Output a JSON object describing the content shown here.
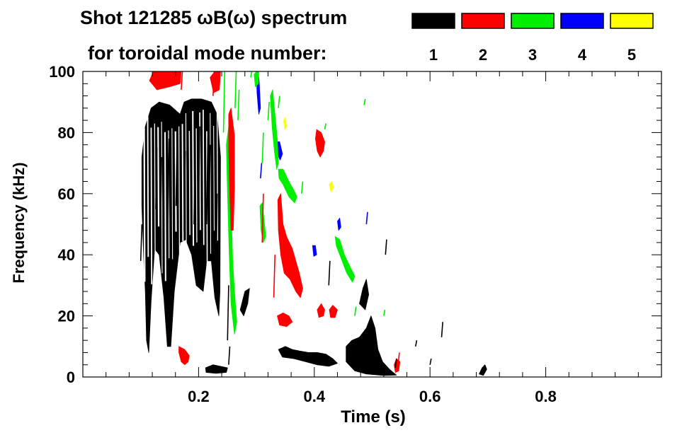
{
  "chart_data": {
    "type": "heatmap",
    "title_line1": "Shot 121285 ωB(ω) spectrum",
    "title_line2": "for toroidal mode number:",
    "xlabel": "Time (s)",
    "ylabel": "Frequency (kHz)",
    "xlim": [
      0.0,
      1.0
    ],
    "ylim": [
      0,
      100
    ],
    "x_ticks": [
      {
        "value": 0.2,
        "label": "0.2"
      },
      {
        "value": 0.4,
        "label": "0.4"
      },
      {
        "value": 0.6,
        "label": "0.6"
      },
      {
        "value": 0.8,
        "label": "0.8"
      }
    ],
    "y_ticks": [
      {
        "value": 0,
        "label": "0"
      },
      {
        "value": 20,
        "label": "20"
      },
      {
        "value": 40,
        "label": "40"
      },
      {
        "value": 60,
        "label": "60"
      },
      {
        "value": 80,
        "label": "80"
      },
      {
        "value": 100,
        "label": "100"
      }
    ],
    "legend": [
      {
        "n": "1",
        "color": "#000000"
      },
      {
        "n": "2",
        "color": "#ff0000"
      },
      {
        "n": "3",
        "color": "#00ee00"
      },
      {
        "n": "4",
        "color": "#0000ff"
      },
      {
        "n": "5",
        "color": "#ffff00"
      }
    ],
    "regions": [
      {
        "mode": 1,
        "points": [
          [
            0.102,
            72
          ],
          [
            0.108,
            82
          ],
          [
            0.118,
            88
          ],
          [
            0.132,
            90
          ],
          [
            0.15,
            89
          ],
          [
            0.168,
            86
          ],
          [
            0.175,
            90
          ],
          [
            0.188,
            91
          ],
          [
            0.205,
            91
          ],
          [
            0.222,
            90
          ],
          [
            0.232,
            86
          ],
          [
            0.238,
            72
          ],
          [
            0.237,
            28
          ],
          [
            0.235,
            20
          ],
          [
            0.228,
            26
          ],
          [
            0.222,
            38
          ],
          [
            0.214,
            38
          ],
          [
            0.208,
            28
          ],
          [
            0.196,
            30
          ],
          [
            0.188,
            40
          ],
          [
            0.178,
            45
          ],
          [
            0.168,
            44
          ],
          [
            0.158,
            28
          ],
          [
            0.152,
            10
          ],
          [
            0.146,
            10
          ],
          [
            0.14,
            26
          ],
          [
            0.132,
            40
          ],
          [
            0.124,
            42
          ],
          [
            0.118,
            25
          ],
          [
            0.114,
            8
          ],
          [
            0.11,
            12
          ],
          [
            0.108,
            28
          ],
          [
            0.105,
            40
          ],
          [
            0.102,
            56
          ]
        ]
      },
      {
        "mode": 1,
        "points": [
          [
            0.212,
            3
          ],
          [
            0.225,
            4
          ],
          [
            0.238,
            3.5
          ],
          [
            0.25,
            3
          ],
          [
            0.248,
            1.5
          ],
          [
            0.23,
            1.2
          ],
          [
            0.213,
            1.5
          ]
        ]
      },
      {
        "mode": 1,
        "points": [
          [
            0.272,
            22
          ],
          [
            0.28,
            28
          ],
          [
            0.288,
            29
          ],
          [
            0.285,
            24
          ],
          [
            0.278,
            20
          ]
        ]
      },
      {
        "mode": 1,
        "points": [
          [
            0.338,
            9
          ],
          [
            0.35,
            10
          ],
          [
            0.362,
            9
          ],
          [
            0.375,
            8.5
          ],
          [
            0.39,
            8
          ],
          [
            0.405,
            8
          ],
          [
            0.42,
            7.5
          ],
          [
            0.432,
            6
          ],
          [
            0.44,
            4.5
          ],
          [
            0.425,
            3.5
          ],
          [
            0.405,
            4
          ],
          [
            0.385,
            5
          ],
          [
            0.365,
            6
          ],
          [
            0.345,
            6.5
          ]
        ]
      },
      {
        "mode": 1,
        "points": [
          [
            0.455,
            10
          ],
          [
            0.465,
            12
          ],
          [
            0.478,
            13
          ],
          [
            0.49,
            16
          ],
          [
            0.498,
            20
          ],
          [
            0.505,
            16
          ],
          [
            0.51,
            9
          ],
          [
            0.518,
            5
          ],
          [
            0.53,
            2.5
          ],
          [
            0.542,
            0.6
          ],
          [
            0.52,
            0.5
          ],
          [
            0.49,
            1
          ],
          [
            0.47,
            2
          ],
          [
            0.455,
            5
          ]
        ]
      },
      {
        "mode": 1,
        "points": [
          [
            0.478,
            24
          ],
          [
            0.484,
            29
          ],
          [
            0.49,
            32
          ],
          [
            0.494,
            27
          ],
          [
            0.488,
            22
          ]
        ]
      },
      {
        "mode": 1,
        "points": [
          [
            0.685,
            1
          ],
          [
            0.69,
            3
          ],
          [
            0.695,
            4
          ],
          [
            0.698,
            2.5
          ],
          [
            0.692,
            0.5
          ]
        ]
      },
      {
        "mode": 2,
        "points": [
          [
            0.115,
            97
          ],
          [
            0.122,
            100
          ],
          [
            0.17,
            100
          ],
          [
            0.168,
            96
          ],
          [
            0.15,
            95
          ],
          [
            0.128,
            94
          ]
        ]
      },
      {
        "mode": 2,
        "points": [
          [
            0.22,
            98
          ],
          [
            0.228,
            100
          ],
          [
            0.238,
            100
          ],
          [
            0.236,
            94
          ],
          [
            0.226,
            93
          ]
        ]
      },
      {
        "mode": 2,
        "points": [
          [
            0.252,
            86
          ],
          [
            0.256,
            88
          ],
          [
            0.262,
            79
          ],
          [
            0.262,
            62
          ],
          [
            0.26,
            48
          ],
          [
            0.256,
            48
          ],
          [
            0.254,
            60
          ],
          [
            0.252,
            75
          ]
        ]
      },
      {
        "mode": 2,
        "points": [
          [
            0.166,
            10
          ],
          [
            0.176,
            9
          ],
          [
            0.184,
            7
          ],
          [
            0.182,
            5
          ],
          [
            0.176,
            4
          ],
          [
            0.17,
            5
          ],
          [
            0.166,
            8
          ]
        ]
      },
      {
        "mode": 2,
        "points": [
          [
            0.337,
            58
          ],
          [
            0.342,
            60
          ],
          [
            0.346,
            50
          ],
          [
            0.352,
            46
          ],
          [
            0.362,
            42
          ],
          [
            0.368,
            38
          ],
          [
            0.374,
            34
          ],
          [
            0.38,
            29
          ],
          [
            0.376,
            26
          ],
          [
            0.368,
            28
          ],
          [
            0.358,
            32
          ],
          [
            0.348,
            34
          ],
          [
            0.342,
            40
          ],
          [
            0.338,
            48
          ]
        ]
      },
      {
        "mode": 2,
        "points": [
          [
            0.336,
            20
          ],
          [
            0.346,
            21
          ],
          [
            0.356,
            20
          ],
          [
            0.362,
            18
          ],
          [
            0.352,
            16.5
          ],
          [
            0.34,
            17
          ]
        ]
      },
      {
        "mode": 2,
        "points": [
          [
            0.404,
            81
          ],
          [
            0.412,
            80
          ],
          [
            0.418,
            77
          ],
          [
            0.416,
            74
          ],
          [
            0.41,
            72
          ],
          [
            0.405,
            74
          ],
          [
            0.402,
            78
          ]
        ]
      },
      {
        "mode": 2,
        "points": [
          [
            0.405,
            22
          ],
          [
            0.412,
            24
          ],
          [
            0.418,
            22
          ],
          [
            0.416,
            20
          ],
          [
            0.408,
            19.5
          ]
        ]
      },
      {
        "mode": 2,
        "points": [
          [
            0.426,
            22
          ],
          [
            0.432,
            23.5
          ],
          [
            0.44,
            22
          ],
          [
            0.436,
            19.5
          ],
          [
            0.428,
            19.5
          ]
        ]
      },
      {
        "mode": 2,
        "points": [
          [
            0.538,
            4
          ],
          [
            0.542,
            6
          ],
          [
            0.548,
            5
          ],
          [
            0.546,
            2
          ],
          [
            0.54,
            1.5
          ]
        ]
      },
      {
        "mode": 3,
        "points": [
          [
            0.248,
            76
          ],
          [
            0.252,
            82
          ],
          [
            0.255,
            70
          ],
          [
            0.257,
            50
          ],
          [
            0.259,
            38
          ],
          [
            0.262,
            28
          ],
          [
            0.266,
            18
          ],
          [
            0.262,
            14
          ],
          [
            0.256,
            24
          ],
          [
            0.253,
            40
          ],
          [
            0.25,
            60
          ]
        ]
      },
      {
        "mode": 3,
        "points": [
          [
            0.306,
            56
          ],
          [
            0.31,
            57
          ],
          [
            0.314,
            50
          ],
          [
            0.316,
            46
          ],
          [
            0.312,
            44
          ],
          [
            0.308,
            48
          ]
        ]
      },
      {
        "mode": 3,
        "points": [
          [
            0.324,
            92
          ],
          [
            0.328,
            94
          ],
          [
            0.332,
            86
          ],
          [
            0.336,
            78
          ],
          [
            0.338,
            70
          ],
          [
            0.335,
            68
          ],
          [
            0.331,
            74
          ],
          [
            0.327,
            82
          ]
        ]
      },
      {
        "mode": 3,
        "points": [
          [
            0.338,
            68
          ],
          [
            0.346,
            68
          ],
          [
            0.356,
            64
          ],
          [
            0.365,
            61
          ],
          [
            0.37,
            59
          ],
          [
            0.366,
            57
          ],
          [
            0.356,
            59
          ],
          [
            0.346,
            63
          ],
          [
            0.339,
            65
          ]
        ]
      },
      {
        "mode": 3,
        "points": [
          [
            0.436,
            46
          ],
          [
            0.444,
            45
          ],
          [
            0.452,
            40
          ],
          [
            0.462,
            36
          ],
          [
            0.47,
            33
          ],
          [
            0.466,
            31
          ],
          [
            0.456,
            34
          ],
          [
            0.446,
            39
          ],
          [
            0.438,
            43
          ]
        ]
      },
      {
        "mode": 3,
        "points": [
          [
            0.296,
            99
          ],
          [
            0.3,
            100
          ],
          [
            0.304,
            100
          ],
          [
            0.303,
            96
          ],
          [
            0.298,
            95
          ]
        ]
      },
      {
        "mode": 4,
        "points": [
          [
            0.3,
            100
          ],
          [
            0.303,
            100
          ],
          [
            0.305,
            96
          ],
          [
            0.307,
            88
          ],
          [
            0.304,
            86
          ],
          [
            0.301,
            93
          ]
        ]
      },
      {
        "mode": 4,
        "points": [
          [
            0.335,
            77
          ],
          [
            0.34,
            77
          ],
          [
            0.345,
            73
          ],
          [
            0.341,
            71
          ],
          [
            0.336,
            73
          ]
        ]
      },
      {
        "mode": 4,
        "points": [
          [
            0.44,
            51
          ],
          [
            0.444,
            52
          ],
          [
            0.446,
            49
          ],
          [
            0.442,
            48
          ]
        ]
      },
      {
        "mode": 4,
        "points": [
          [
            0.397,
            43
          ],
          [
            0.402,
            43
          ],
          [
            0.404,
            40
          ],
          [
            0.399,
            39.5
          ]
        ]
      },
      {
        "mode": 5,
        "points": [
          [
            0.347,
            84
          ],
          [
            0.35,
            85
          ],
          [
            0.352,
            82
          ],
          [
            0.349,
            81
          ]
        ]
      },
      {
        "mode": 5,
        "points": [
          [
            0.426,
            63
          ],
          [
            0.43,
            64
          ],
          [
            0.433,
            62
          ],
          [
            0.429,
            60.5
          ]
        ]
      }
    ],
    "streaks": [
      {
        "mode": 1,
        "segments": [
          [
            0.1,
            38,
            50
          ],
          [
            0.126,
            55,
            75
          ],
          [
            0.134,
            45,
            72
          ],
          [
            0.147,
            50,
            78
          ],
          [
            0.161,
            56,
            80
          ],
          [
            0.175,
            48,
            74
          ],
          [
            0.192,
            50,
            72
          ],
          [
            0.2,
            55,
            82
          ],
          [
            0.214,
            50,
            78
          ],
          [
            0.218,
            50,
            76
          ],
          [
            0.23,
            30,
            60
          ],
          [
            0.25,
            12,
            30
          ],
          [
            0.252,
            4,
            10
          ],
          [
            0.425,
            30,
            38
          ],
          [
            0.523,
            40,
            45
          ],
          [
            0.54,
            3,
            6
          ],
          [
            0.575,
            10,
            12
          ],
          [
            0.6,
            4,
            6
          ],
          [
            0.62,
            13,
            18
          ]
        ]
      },
      {
        "mode": 2,
        "segments": [
          [
            0.17,
            94,
            100
          ],
          [
            0.225,
            92,
            100
          ],
          [
            0.31,
            44,
            60
          ],
          [
            0.33,
            26,
            40
          ],
          [
            0.545,
            4,
            8
          ]
        ]
      },
      {
        "mode": 3,
        "segments": [
          [
            0.243,
            80,
            100
          ],
          [
            0.263,
            88,
            100
          ],
          [
            0.268,
            84,
            94
          ],
          [
            0.29,
            98,
            100
          ],
          [
            0.31,
            70,
            80
          ],
          [
            0.32,
            84,
            90
          ],
          [
            0.338,
            88,
            92
          ],
          [
            0.378,
            60,
            64
          ],
          [
            0.418,
            81,
            83
          ],
          [
            0.47,
            20,
            23
          ],
          [
            0.486,
            89,
            91
          ],
          [
            0.52,
            20,
            22
          ]
        ]
      },
      {
        "mode": 4,
        "segments": [
          [
            0.307,
            65,
            70
          ],
          [
            0.49,
            50,
            54
          ]
        ]
      }
    ]
  }
}
